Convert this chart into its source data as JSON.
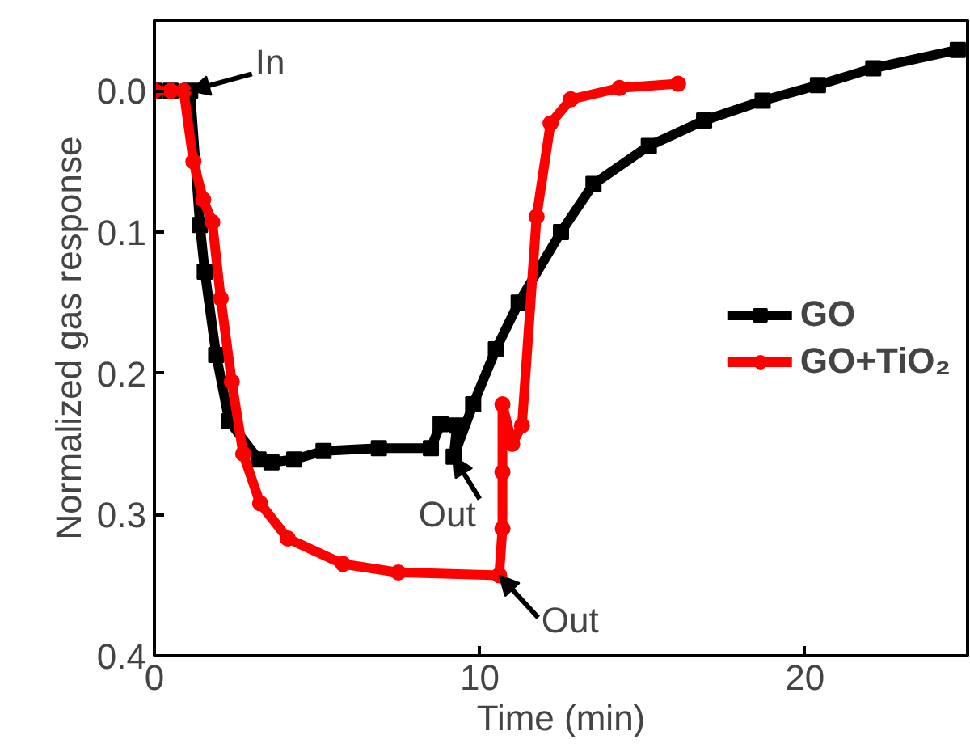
{
  "chart_data": {
    "type": "line",
    "xlabel": "Time (min)",
    "ylabel": "Normalized gas response",
    "xlim": [
      0,
      25
    ],
    "xticks": [
      0,
      10,
      20
    ],
    "ylim": [
      0.4,
      -0.05
    ],
    "yticks": [
      {
        "value": 0,
        "label": "0.0"
      },
      0.1,
      0.2,
      0.3,
      0.4
    ],
    "grid": false,
    "legend": "right",
    "series": [
      {
        "name": "GO",
        "color": "#000000",
        "marker": "square",
        "x": [
          0,
          0.5,
          1.1,
          1.4,
          1.55,
          1.9,
          2.3,
          3.2,
          3.6,
          4.3,
          5.2,
          6.9,
          8.5,
          8.8,
          9.3,
          9.2,
          9.8,
          10.5,
          11.2,
          12.5,
          13.5,
          15.2,
          16.9,
          18.7,
          20.4,
          22.1,
          24.7
        ],
        "values": [
          0,
          0,
          0,
          0.095,
          0.128,
          0.187,
          0.234,
          0.261,
          0.263,
          0.261,
          0.255,
          0.253,
          0.253,
          0.236,
          0.237,
          0.259,
          0.222,
          0.183,
          0.15,
          0.1,
          0.066,
          0.039,
          0.021,
          0.007,
          -0.004,
          -0.016,
          -0.029
        ]
      },
      {
        "name": "GO+TiO₂",
        "color": "#ff0000",
        "marker": "circle",
        "x": [
          0,
          0.5,
          0.9,
          1.2,
          1.5,
          1.78,
          2.04,
          2.38,
          2.73,
          3.25,
          4.1,
          5.8,
          7.5,
          10.6,
          10.7,
          10.7,
          10.7,
          11.0,
          11.3,
          11.75,
          12.18,
          12.8,
          14.3,
          16.1
        ],
        "values": [
          0,
          0,
          0,
          0.05,
          0.077,
          0.093,
          0.147,
          0.206,
          0.257,
          0.292,
          0.317,
          0.335,
          0.341,
          0.343,
          0.31,
          0.27,
          0.222,
          0.25,
          0.237,
          0.089,
          0.023,
          0.006,
          -0.002,
          -0.005
        ]
      }
    ],
    "annotations": [
      {
        "text": "In",
        "x": 1.1,
        "y": 0
      },
      {
        "text": "Out",
        "x": 9.2,
        "y": 0.259
      },
      {
        "text": "Out",
        "x": 10.6,
        "y": 0.343
      }
    ]
  }
}
